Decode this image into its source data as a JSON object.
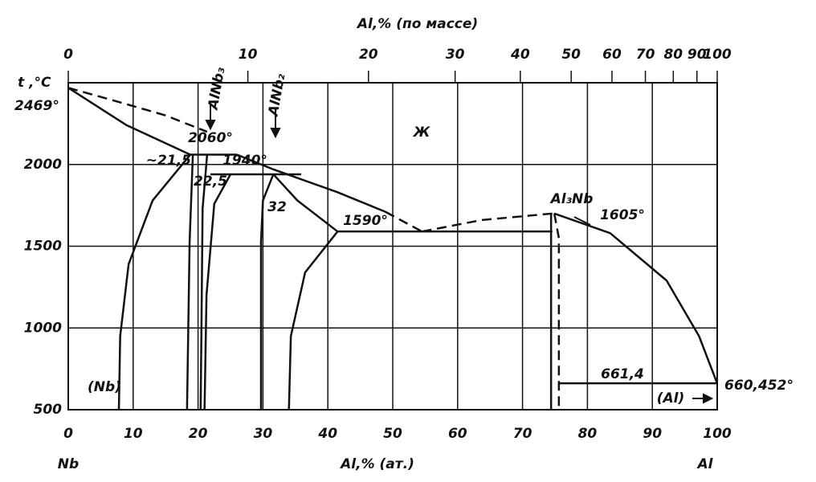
{
  "chart_data": {
    "type": "line",
    "title": "Al,% (по массе)",
    "x_label": "Al,% (ат.)",
    "y_label": "t ,°C",
    "x_left_label": "Nb",
    "x_right_label": "Al",
    "xlim": [
      0,
      100
    ],
    "xticks": [
      0,
      10,
      20,
      30,
      40,
      50,
      60,
      70,
      80,
      90,
      100
    ],
    "x2lim": [
      0,
      100
    ],
    "x2ticks": [
      0,
      10,
      20,
      30,
      40,
      50,
      60,
      70,
      80,
      90,
      100
    ],
    "ylim": [
      500,
      2500
    ],
    "yticks": [
      500,
      1000,
      1500,
      2000
    ],
    "grid": true,
    "color": "#111111",
    "series": [
      {
        "x": [
          0,
          9,
          18.8
        ],
        "values": [
          2469,
          2240,
          2060
        ],
        "dashed": false
      },
      {
        "x": [
          0,
          8,
          15,
          21.4
        ],
        "values": [
          2469,
          2380,
          2300,
          2200
        ],
        "dashed": true
      },
      {
        "x": [
          18.8,
          13,
          9.3,
          8,
          7.8
        ],
        "values": [
          2060,
          1780,
          1390,
          950,
          500
        ],
        "dashed": false
      },
      {
        "x": [
          19.2,
          18.7,
          18.3
        ],
        "values": [
          2060,
          1530,
          500
        ],
        "dashed": false
      },
      {
        "x": [
          21.4,
          20.7,
          20.4
        ],
        "values": [
          2060,
          1730,
          500
        ],
        "dashed": false
      },
      {
        "x": [
          25,
          22.5,
          21.3,
          21
        ],
        "values": [
          1940,
          1760,
          1200,
          500
        ],
        "dashed": false
      },
      {
        "x": [
          18.8,
          26
        ],
        "values": [
          2060,
          2060
        ],
        "dashed": false
      },
      {
        "x": [
          21.9,
          35.9
        ],
        "values": [
          1940,
          1940
        ],
        "dashed": false
      },
      {
        "x": [
          31.6,
          30,
          29.7,
          29.7
        ],
        "values": [
          1940,
          1780,
          1530,
          500
        ],
        "dashed": false
      },
      {
        "x": [
          31.6,
          35.3,
          41.5
        ],
        "values": [
          1940,
          1780,
          1590
        ],
        "dashed": false
      },
      {
        "x": [
          41.5,
          36.5,
          34.3,
          34
        ],
        "values": [
          1590,
          1340,
          950,
          500
        ],
        "dashed": false
      },
      {
        "x": [
          26,
          31.6,
          41.5,
          48.9
        ],
        "values": [
          2060,
          1970,
          1830,
          1710
        ],
        "dashed": false
      },
      {
        "x": [
          48.9,
          54.5
        ],
        "values": [
          1710,
          1590
        ],
        "dashed": true
      },
      {
        "x": [
          41.5,
          74.6
        ],
        "values": [
          1590,
          1590
        ],
        "dashed": false
      },
      {
        "x": [
          54.5,
          63.7,
          74.6
        ],
        "values": [
          1590,
          1660,
          1700
        ],
        "dashed": true
      },
      {
        "x": [
          74.9,
          83.5,
          92.2,
          97.2,
          100
        ],
        "values": [
          1700,
          1580,
          1290,
          950,
          660.452
        ],
        "dashed": false
      },
      {
        "x": [
          74.4,
          74.4
        ],
        "values": [
          1700,
          500
        ],
        "dashed": false
      },
      {
        "x": [
          74.9,
          75.6,
          75.6
        ],
        "values": [
          1700,
          1550,
          500
        ],
        "dashed": true
      },
      {
        "x": [
          75.6,
          100
        ],
        "values": [
          661.4,
          661.4
        ],
        "dashed": false
      }
    ],
    "annotations": [
      "2469°",
      "2060°",
      "1940°",
      "~21,5",
      "22,5",
      "32",
      "1590°",
      "Al₃Nb",
      "1605°",
      "661,4",
      "660,452°",
      "(Nb)",
      "(Al)",
      "Ж",
      "AlNb₃",
      "AlNb₂"
    ]
  }
}
